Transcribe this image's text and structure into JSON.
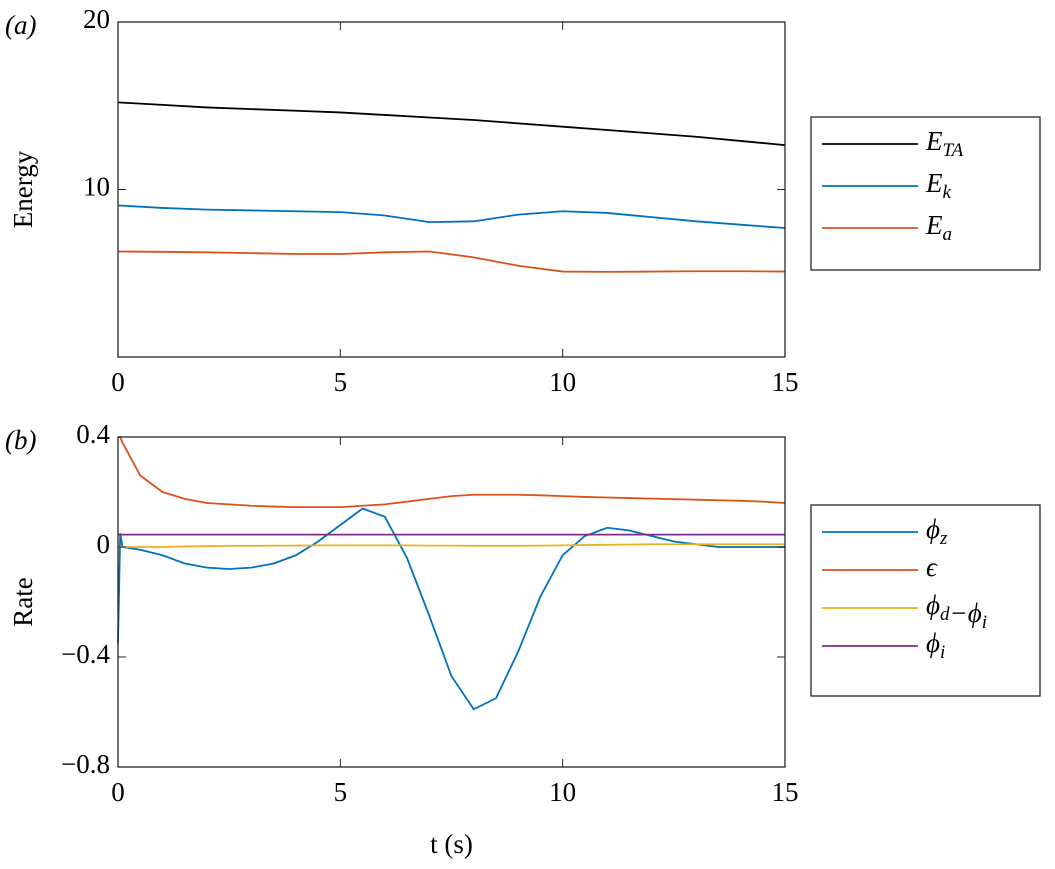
{
  "chart_data": [
    {
      "type": "line",
      "label": "(a)",
      "ylabel": "Energy",
      "x": [
        0,
        1,
        2,
        3,
        4,
        5,
        6,
        7,
        8,
        9,
        10,
        11,
        12,
        13,
        14,
        15
      ],
      "series": [
        {
          "name": "ETA",
          "color": "#000000",
          "values": [
            15.2,
            15.05,
            14.9,
            14.8,
            14.7,
            14.6,
            14.45,
            14.3,
            14.15,
            13.95,
            13.75,
            13.55,
            13.35,
            13.15,
            12.9,
            12.65
          ]
        },
        {
          "name": "Ek",
          "color": "#0072bd",
          "values": [
            9.05,
            8.9,
            8.8,
            8.75,
            8.7,
            8.65,
            8.45,
            8.05,
            8.1,
            8.5,
            8.7,
            8.6,
            8.35,
            8.1,
            7.9,
            7.7
          ]
        },
        {
          "name": "Ea",
          "color": "#d95319",
          "values": [
            6.3,
            6.28,
            6.25,
            6.2,
            6.15,
            6.15,
            6.25,
            6.3,
            5.95,
            5.45,
            5.1,
            5.08,
            5.1,
            5.12,
            5.12,
            5.1
          ]
        }
      ],
      "xlim": [
        0,
        15
      ],
      "xticks": [
        0,
        5,
        10,
        15
      ],
      "ylim": [
        0,
        20
      ],
      "yticks": [
        10,
        20
      ],
      "legend": "outside right"
    },
    {
      "type": "line",
      "label": "(b)",
      "ylabel": "Rate",
      "xlabel": "t (s)",
      "x": [
        0,
        0.05,
        0.1,
        0.5,
        1,
        1.5,
        2,
        2.5,
        3,
        3.5,
        4,
        4.5,
        5,
        5.5,
        6,
        6.5,
        7,
        7.5,
        8,
        8.5,
        9,
        9.5,
        10,
        10.5,
        11,
        11.5,
        12,
        12.5,
        13,
        13.5,
        14,
        14.5,
        15
      ],
      "series": [
        {
          "name": "ϕz",
          "color": "#0072bd",
          "values": [
            -0.35,
            0.05,
            0.0,
            -0.01,
            -0.03,
            -0.06,
            -0.075,
            -0.08,
            -0.075,
            -0.06,
            -0.03,
            0.02,
            0.08,
            0.14,
            0.11,
            -0.04,
            -0.25,
            -0.47,
            -0.59,
            -0.55,
            -0.38,
            -0.18,
            -0.03,
            0.04,
            0.07,
            0.06,
            0.04,
            0.02,
            0.01,
            0,
            0,
            0,
            0
          ]
        },
        {
          "name": "ϵ",
          "color": "#d95319",
          "values": [
            0.4,
            0.4,
            0.38,
            0.26,
            0.2,
            0.175,
            0.16,
            0.155,
            0.15,
            0.147,
            0.145,
            0.145,
            0.145,
            0.15,
            0.155,
            0.165,
            0.175,
            0.185,
            0.19,
            0.19,
            0.19,
            0.188,
            0.185,
            0.182,
            0.18,
            0.178,
            0.176,
            0.174,
            0.172,
            0.17,
            0.168,
            0.165,
            0.16
          ]
        },
        {
          "name": "ϕd−ϕi",
          "color": "#edb120",
          "values": [
            0,
            0,
            0,
            0,
            0,
            0.002,
            0.003,
            0.004,
            0.004,
            0.005,
            0.005,
            0.006,
            0.006,
            0.006,
            0.006,
            0.006,
            0.005,
            0.005,
            0.004,
            0.004,
            0.004,
            0.005,
            0.006,
            0.007,
            0.008,
            0.009,
            0.01,
            0.01,
            0.01,
            0.01,
            0.01,
            0.01,
            0.01
          ]
        },
        {
          "name": "ϕi",
          "color": "#7e2f8e",
          "values": [
            0.045,
            0.045,
            0.045,
            0.045,
            0.045,
            0.045,
            0.045,
            0.045,
            0.045,
            0.045,
            0.045,
            0.045,
            0.045,
            0.045,
            0.045,
            0.045,
            0.045,
            0.045,
            0.045,
            0.045,
            0.045,
            0.045,
            0.045,
            0.045,
            0.045,
            0.045,
            0.045,
            0.045,
            0.045,
            0.045,
            0.045,
            0.045,
            0.045
          ]
        }
      ],
      "xlim": [
        0,
        15
      ],
      "xticks": [
        0,
        5,
        10,
        15
      ],
      "ylim": [
        -0.8,
        0.4
      ],
      "yticks": [
        {
          "value": -0.8,
          "label": "−0.8"
        },
        {
          "value": -0.4,
          "label": "−0.4"
        },
        0,
        0.4
      ],
      "legend": "outside right"
    }
  ]
}
